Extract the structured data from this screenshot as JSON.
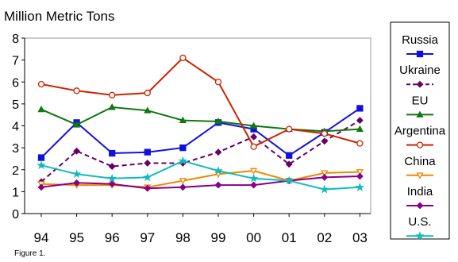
{
  "caption": "Figure 1.",
  "chart_data": {
    "type": "line",
    "title": "Million Metric Tons",
    "xlabel": "",
    "ylabel": "",
    "categories": [
      "94",
      "95",
      "96",
      "97",
      "98",
      "99",
      "00",
      "01",
      "02",
      "03"
    ],
    "ylim": [
      0,
      8
    ],
    "yticks": [
      "0",
      "1",
      "2",
      "3",
      "4",
      "5",
      "6",
      "7",
      "8"
    ],
    "grid": false,
    "legend_position": "right",
    "series": [
      {
        "name": "Russia",
        "color": "#1111dd",
        "marker": "square",
        "dash": "solid",
        "values": [
          2.55,
          4.15,
          2.75,
          2.8,
          3.0,
          4.15,
          3.85,
          2.65,
          3.7,
          4.8
        ]
      },
      {
        "name": "Ukraine",
        "color": "#660066",
        "marker": "diamond",
        "dash": "dashed",
        "values": [
          1.45,
          2.85,
          2.15,
          2.3,
          2.3,
          2.8,
          3.5,
          2.25,
          3.3,
          4.25
        ]
      },
      {
        "name": "EU",
        "color": "#117711",
        "marker": "triangle-up",
        "dash": "solid",
        "values": [
          4.75,
          4.05,
          4.85,
          4.7,
          4.25,
          4.2,
          4.0,
          3.85,
          3.75,
          3.85
        ]
      },
      {
        "name": "Argentina",
        "color": "#cc2200",
        "marker": "circle",
        "dash": "solid",
        "values": [
          5.9,
          5.6,
          5.4,
          5.5,
          7.1,
          6.0,
          3.05,
          3.85,
          3.65,
          3.2
        ]
      },
      {
        "name": "China",
        "color": "#ee8800",
        "marker": "triangle-down",
        "dash": "solid",
        "values": [
          1.35,
          1.3,
          1.3,
          1.2,
          1.5,
          1.8,
          1.95,
          1.5,
          1.85,
          1.9
        ]
      },
      {
        "name": "India",
        "color": "#880088",
        "marker": "diamond",
        "dash": "solid",
        "values": [
          1.2,
          1.4,
          1.35,
          1.15,
          1.2,
          1.3,
          1.3,
          1.5,
          1.65,
          1.7
        ]
      },
      {
        "name": "U.S.",
        "color": "#11bbbb",
        "marker": "star",
        "dash": "solid",
        "values": [
          2.2,
          1.8,
          1.6,
          1.65,
          2.4,
          1.95,
          1.6,
          1.5,
          1.1,
          1.2
        ]
      }
    ]
  }
}
